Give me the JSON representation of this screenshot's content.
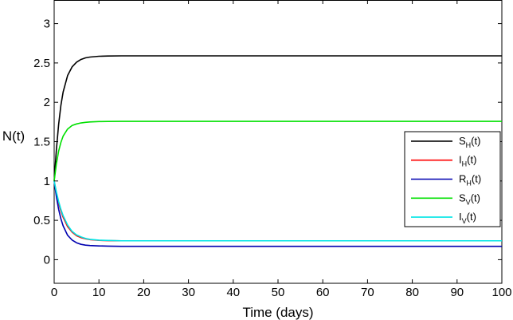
{
  "chart_data": {
    "type": "line",
    "xlabel": "Time (days)",
    "ylabel": "N(t)",
    "xlim": [
      0,
      100
    ],
    "ylim": [
      -0.3,
      3.3
    ],
    "x_ticks": [
      0,
      10,
      20,
      30,
      40,
      50,
      60,
      70,
      80,
      90,
      100
    ],
    "y_ticks": [
      0,
      0.5,
      1,
      1.5,
      2,
      2.5,
      3
    ],
    "grid": false,
    "legend_position": "right",
    "series": [
      {
        "name": "S_H(t)",
        "legend": {
          "main": "S",
          "sub": "H",
          "suffix": "(t)"
        },
        "color": "#000000",
        "x": [
          0,
          0.5,
          1,
          1.5,
          2,
          3,
          4,
          5,
          6,
          7,
          8,
          10,
          12,
          15,
          20,
          25,
          30,
          40,
          50,
          60,
          70,
          80,
          90,
          100
        ],
        "y": [
          1.0,
          1.4,
          1.72,
          1.96,
          2.13,
          2.34,
          2.45,
          2.51,
          2.545,
          2.565,
          2.575,
          2.585,
          2.588,
          2.59,
          2.59,
          2.59,
          2.59,
          2.59,
          2.59,
          2.59,
          2.59,
          2.59,
          2.59,
          2.59
        ]
      },
      {
        "name": "I_H(t)",
        "legend": {
          "main": "I",
          "sub": "H",
          "suffix": "(t)"
        },
        "color": "#ff0000",
        "x": [
          0,
          0.5,
          1,
          1.5,
          2,
          3,
          4,
          5,
          6,
          7,
          8,
          10,
          12,
          15,
          20,
          25,
          30,
          40,
          50,
          60,
          70,
          80,
          90,
          100
        ],
        "y": [
          1.0,
          0.85,
          0.72,
          0.62,
          0.54,
          0.42,
          0.35,
          0.305,
          0.28,
          0.265,
          0.255,
          0.245,
          0.242,
          0.24,
          0.24,
          0.24,
          0.24,
          0.24,
          0.24,
          0.24,
          0.24,
          0.24,
          0.24,
          0.24
        ]
      },
      {
        "name": "R_H(t)",
        "legend": {
          "main": "R",
          "sub": "H",
          "suffix": "(t)"
        },
        "color": "#0000b0",
        "x": [
          0,
          0.5,
          1,
          1.5,
          2,
          3,
          4,
          5,
          6,
          7,
          8,
          10,
          12,
          15,
          20,
          25,
          30,
          40,
          50,
          60,
          70,
          80,
          90,
          100
        ],
        "y": [
          1.0,
          0.8,
          0.64,
          0.52,
          0.43,
          0.31,
          0.25,
          0.215,
          0.195,
          0.185,
          0.18,
          0.175,
          0.172,
          0.17,
          0.17,
          0.17,
          0.17,
          0.17,
          0.17,
          0.17,
          0.17,
          0.17,
          0.17,
          0.17
        ]
      },
      {
        "name": "S_V(t)",
        "legend": {
          "main": "S",
          "sub": "V",
          "suffix": "(t)"
        },
        "color": "#00e000",
        "x": [
          0,
          0.5,
          1,
          1.5,
          2,
          3,
          4,
          5,
          6,
          7,
          8,
          10,
          12,
          15,
          20,
          25,
          30,
          40,
          50,
          60,
          70,
          80,
          90,
          100
        ],
        "y": [
          1.0,
          1.22,
          1.38,
          1.49,
          1.57,
          1.66,
          1.705,
          1.725,
          1.738,
          1.745,
          1.75,
          1.755,
          1.757,
          1.758,
          1.758,
          1.758,
          1.758,
          1.758,
          1.758,
          1.758,
          1.758,
          1.758,
          1.758,
          1.758
        ]
      },
      {
        "name": "I_V(t)",
        "legend": {
          "main": "I",
          "sub": "V",
          "suffix": "(t)"
        },
        "color": "#00e5e5",
        "x": [
          0,
          0.5,
          1,
          1.5,
          2,
          3,
          4,
          5,
          6,
          7,
          8,
          10,
          12,
          15,
          20,
          25,
          30,
          40,
          50,
          60,
          70,
          80,
          90,
          100
        ],
        "y": [
          1.0,
          0.86,
          0.74,
          0.64,
          0.56,
          0.44,
          0.36,
          0.315,
          0.29,
          0.27,
          0.258,
          0.248,
          0.244,
          0.24,
          0.24,
          0.24,
          0.24,
          0.24,
          0.24,
          0.24,
          0.24,
          0.24,
          0.24,
          0.24
        ]
      }
    ]
  }
}
